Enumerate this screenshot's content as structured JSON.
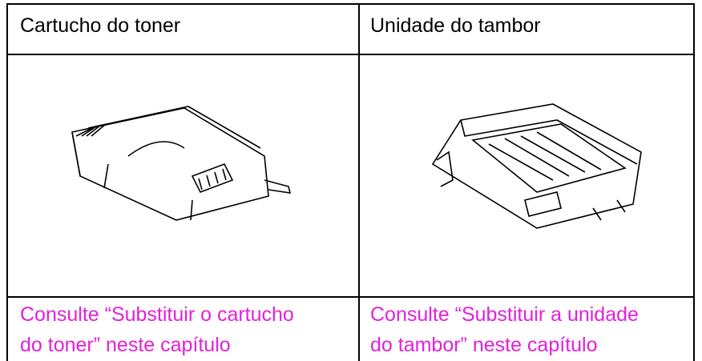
{
  "table": {
    "headers": [
      "Cartucho do toner",
      "Unidade do tambor"
    ],
    "links": [
      [
        "Consulte “Substituir o cartucho",
        "do toner” neste capítulo"
      ],
      [
        "Consulte “Substituir a unidade",
        "do tambor” neste capítulo"
      ]
    ]
  }
}
